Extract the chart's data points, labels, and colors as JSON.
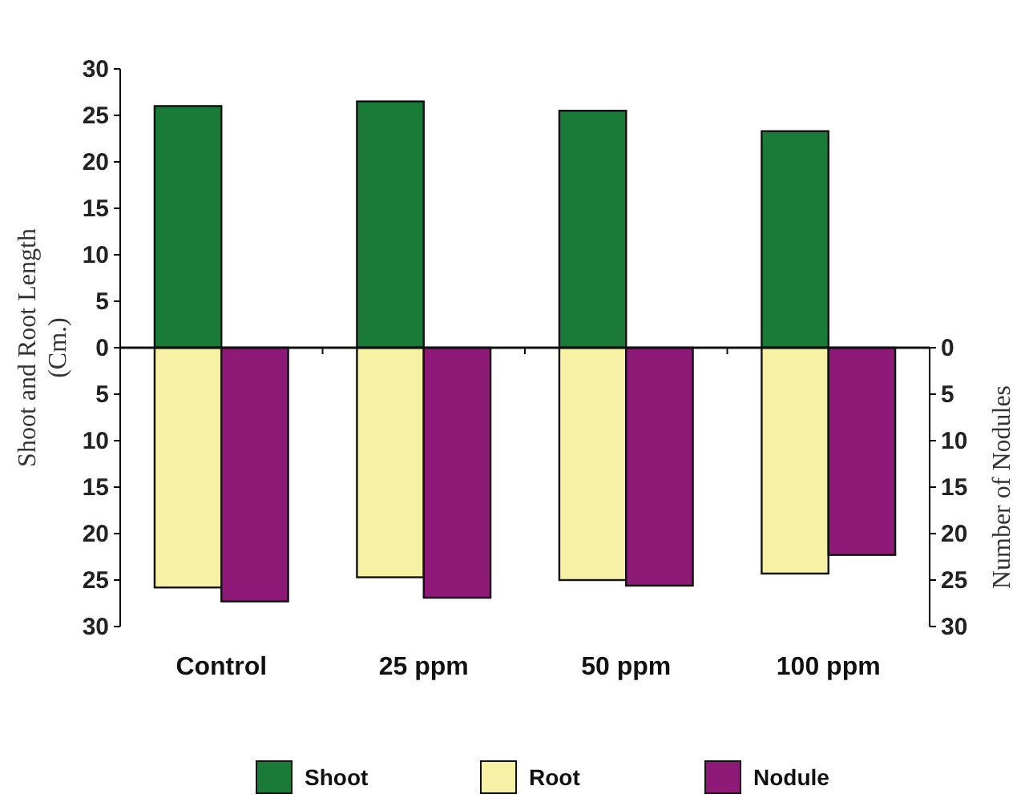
{
  "chart_data": {
    "type": "bar",
    "categories": [
      "Control",
      "25 ppm",
      "50 ppm",
      "100 ppm"
    ],
    "series": [
      {
        "name": "Shoot",
        "color": "#1a7a38",
        "values": [
          26.0,
          26.5,
          25.5,
          23.3
        ]
      },
      {
        "name": "Root",
        "color": "#f7f1a6",
        "values": [
          -25.8,
          -24.7,
          -25.0,
          -24.3
        ]
      },
      {
        "name": "Nodule",
        "color": "#8e1a78",
        "values": [
          27.3,
          26.9,
          25.6,
          22.3
        ],
        "axis": "y2"
      }
    ],
    "ylabel": "Shoot and Root Length\n(Cm.)",
    "y2label": "Number of Nodules",
    "ylim": [
      -30,
      30
    ],
    "yticks": [
      {
        "value": -30,
        "label": "30"
      },
      {
        "value": -25,
        "label": "25"
      },
      {
        "value": -20,
        "label": "20"
      },
      {
        "value": -15,
        "label": "15"
      },
      {
        "value": -10,
        "label": "10"
      },
      {
        "value": -5,
        "label": "5"
      },
      0,
      5,
      10,
      15,
      20,
      25,
      30
    ],
    "y2lim": [
      30,
      -30
    ],
    "y2ticks": [
      0,
      5,
      10,
      15,
      20,
      25,
      30
    ],
    "legend": "bottom",
    "stacked": true
  }
}
